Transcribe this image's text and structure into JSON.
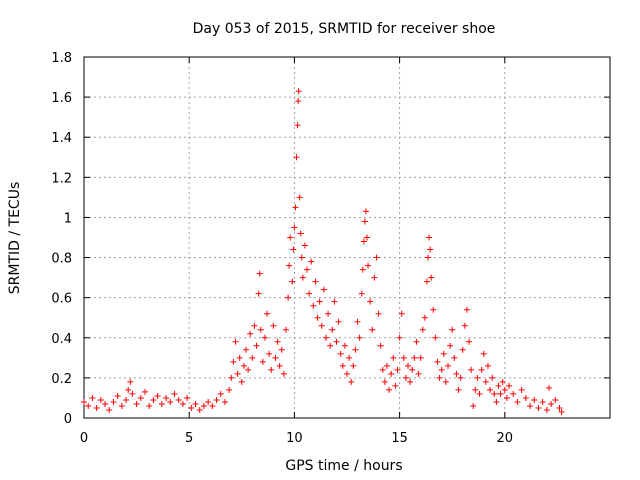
{
  "chart_data": {
    "type": "scatter",
    "title": "Day 053 of 2015, SRMTID for receiver shoe",
    "xlabel": "GPS time / hours",
    "ylabel": "SRMTID / TECUs",
    "xlim": [
      0,
      25
    ],
    "ylim": [
      0,
      1.8
    ],
    "xticks": [
      0,
      5,
      10,
      15,
      20
    ],
    "xtick_labels": [
      "0",
      "5",
      "10",
      "15",
      "20"
    ],
    "yticks": [
      0,
      0.2,
      0.4,
      0.6,
      0.8,
      1,
      1.2,
      1.4,
      1.6,
      1.8
    ],
    "ytick_labels": [
      "0",
      "0.2",
      "0.4",
      "0.6",
      "0.8",
      "1",
      "1.2",
      "1.4",
      "1.6",
      "1.8"
    ],
    "grid": true,
    "marker": "plus",
    "series_color": "#ff0000",
    "series": [
      {
        "name": "SRMTID",
        "points": [
          [
            0.0,
            0.08
          ],
          [
            0.2,
            0.06
          ],
          [
            0.4,
            0.1
          ],
          [
            0.6,
            0.05
          ],
          [
            0.8,
            0.09
          ],
          [
            1.0,
            0.07
          ],
          [
            1.2,
            0.04
          ],
          [
            1.4,
            0.08
          ],
          [
            1.6,
            0.11
          ],
          [
            1.8,
            0.06
          ],
          [
            2.0,
            0.09
          ],
          [
            2.1,
            0.14
          ],
          [
            2.2,
            0.18
          ],
          [
            2.3,
            0.12
          ],
          [
            2.5,
            0.07
          ],
          [
            2.7,
            0.1
          ],
          [
            2.9,
            0.13
          ],
          [
            3.1,
            0.06
          ],
          [
            3.3,
            0.09
          ],
          [
            3.5,
            0.11
          ],
          [
            3.7,
            0.07
          ],
          [
            3.9,
            0.1
          ],
          [
            4.1,
            0.08
          ],
          [
            4.3,
            0.12
          ],
          [
            4.5,
            0.09
          ],
          [
            4.7,
            0.07
          ],
          [
            4.9,
            0.1
          ],
          [
            5.1,
            0.05
          ],
          [
            5.3,
            0.07
          ],
          [
            5.5,
            0.04
          ],
          [
            5.7,
            0.06
          ],
          [
            5.9,
            0.08
          ],
          [
            6.1,
            0.06
          ],
          [
            6.3,
            0.09
          ],
          [
            6.5,
            0.12
          ],
          [
            6.7,
            0.08
          ],
          [
            6.9,
            0.14
          ],
          [
            7.0,
            0.2
          ],
          [
            7.1,
            0.28
          ],
          [
            7.2,
            0.38
          ],
          [
            7.3,
            0.22
          ],
          [
            7.4,
            0.3
          ],
          [
            7.5,
            0.18
          ],
          [
            7.6,
            0.26
          ],
          [
            7.7,
            0.34
          ],
          [
            7.8,
            0.24
          ],
          [
            7.9,
            0.42
          ],
          [
            8.0,
            0.3
          ],
          [
            8.1,
            0.46
          ],
          [
            8.2,
            0.36
          ],
          [
            8.3,
            0.62
          ],
          [
            8.35,
            0.72
          ],
          [
            8.4,
            0.44
          ],
          [
            8.5,
            0.28
          ],
          [
            8.6,
            0.4
          ],
          [
            8.7,
            0.52
          ],
          [
            8.8,
            0.32
          ],
          [
            8.9,
            0.24
          ],
          [
            9.0,
            0.46
          ],
          [
            9.1,
            0.3
          ],
          [
            9.2,
            0.38
          ],
          [
            9.3,
            0.26
          ],
          [
            9.4,
            0.34
          ],
          [
            9.5,
            0.22
          ],
          [
            9.6,
            0.44
          ],
          [
            9.7,
            0.6
          ],
          [
            9.75,
            0.76
          ],
          [
            9.8,
            0.9
          ],
          [
            9.9,
            0.68
          ],
          [
            9.95,
            0.84
          ],
          [
            10.0,
            0.95
          ],
          [
            10.05,
            1.05
          ],
          [
            10.1,
            1.3
          ],
          [
            10.15,
            1.46
          ],
          [
            10.18,
            1.58
          ],
          [
            10.2,
            1.63
          ],
          [
            10.25,
            1.1
          ],
          [
            10.3,
            0.92
          ],
          [
            10.35,
            0.8
          ],
          [
            10.4,
            0.7
          ],
          [
            10.5,
            0.86
          ],
          [
            10.6,
            0.74
          ],
          [
            10.7,
            0.62
          ],
          [
            10.8,
            0.78
          ],
          [
            10.9,
            0.56
          ],
          [
            11.0,
            0.68
          ],
          [
            11.1,
            0.5
          ],
          [
            11.2,
            0.58
          ],
          [
            11.3,
            0.46
          ],
          [
            11.4,
            0.64
          ],
          [
            11.5,
            0.4
          ],
          [
            11.6,
            0.52
          ],
          [
            11.7,
            0.36
          ],
          [
            11.8,
            0.44
          ],
          [
            11.9,
            0.58
          ],
          [
            12.0,
            0.38
          ],
          [
            12.1,
            0.48
          ],
          [
            12.2,
            0.32
          ],
          [
            12.3,
            0.26
          ],
          [
            12.4,
            0.36
          ],
          [
            12.5,
            0.22
          ],
          [
            12.6,
            0.3
          ],
          [
            12.7,
            0.18
          ],
          [
            12.8,
            0.26
          ],
          [
            12.9,
            0.34
          ],
          [
            13.0,
            0.48
          ],
          [
            13.1,
            0.4
          ],
          [
            13.2,
            0.62
          ],
          [
            13.25,
            0.74
          ],
          [
            13.3,
            0.88
          ],
          [
            13.35,
            0.98
          ],
          [
            13.4,
            1.03
          ],
          [
            13.45,
            0.9
          ],
          [
            13.5,
            0.76
          ],
          [
            13.6,
            0.58
          ],
          [
            13.7,
            0.44
          ],
          [
            13.8,
            0.7
          ],
          [
            13.9,
            0.8
          ],
          [
            14.0,
            0.52
          ],
          [
            14.1,
            0.36
          ],
          [
            14.2,
            0.24
          ],
          [
            14.3,
            0.18
          ],
          [
            14.4,
            0.26
          ],
          [
            14.5,
            0.14
          ],
          [
            14.6,
            0.22
          ],
          [
            14.7,
            0.3
          ],
          [
            14.8,
            0.16
          ],
          [
            14.9,
            0.24
          ],
          [
            15.0,
            0.4
          ],
          [
            15.1,
            0.52
          ],
          [
            15.2,
            0.3
          ],
          [
            15.3,
            0.2
          ],
          [
            15.4,
            0.26
          ],
          [
            15.5,
            0.18
          ],
          [
            15.6,
            0.24
          ],
          [
            15.7,
            0.3
          ],
          [
            15.8,
            0.38
          ],
          [
            15.9,
            0.22
          ],
          [
            16.0,
            0.3
          ],
          [
            16.1,
            0.44
          ],
          [
            16.2,
            0.5
          ],
          [
            16.3,
            0.68
          ],
          [
            16.35,
            0.8
          ],
          [
            16.4,
            0.9
          ],
          [
            16.45,
            0.84
          ],
          [
            16.5,
            0.7
          ],
          [
            16.6,
            0.54
          ],
          [
            16.7,
            0.4
          ],
          [
            16.8,
            0.28
          ],
          [
            16.9,
            0.2
          ],
          [
            17.0,
            0.24
          ],
          [
            17.1,
            0.32
          ],
          [
            17.2,
            0.18
          ],
          [
            17.3,
            0.26
          ],
          [
            17.4,
            0.36
          ],
          [
            17.5,
            0.44
          ],
          [
            17.6,
            0.3
          ],
          [
            17.7,
            0.22
          ],
          [
            17.8,
            0.14
          ],
          [
            17.9,
            0.2
          ],
          [
            18.0,
            0.34
          ],
          [
            18.1,
            0.46
          ],
          [
            18.2,
            0.54
          ],
          [
            18.3,
            0.38
          ],
          [
            18.4,
            0.24
          ],
          [
            18.5,
            0.06
          ],
          [
            18.6,
            0.14
          ],
          [
            18.7,
            0.2
          ],
          [
            18.8,
            0.12
          ],
          [
            18.9,
            0.24
          ],
          [
            19.0,
            0.32
          ],
          [
            19.1,
            0.18
          ],
          [
            19.2,
            0.26
          ],
          [
            19.3,
            0.14
          ],
          [
            19.4,
            0.2
          ],
          [
            19.5,
            0.12
          ],
          [
            19.6,
            0.08
          ],
          [
            19.7,
            0.16
          ],
          [
            19.8,
            0.12
          ],
          [
            19.9,
            0.18
          ],
          [
            20.0,
            0.14
          ],
          [
            20.1,
            0.1
          ],
          [
            20.2,
            0.16
          ],
          [
            20.4,
            0.12
          ],
          [
            20.6,
            0.08
          ],
          [
            20.8,
            0.14
          ],
          [
            21.0,
            0.1
          ],
          [
            21.2,
            0.06
          ],
          [
            21.4,
            0.09
          ],
          [
            21.6,
            0.05
          ],
          [
            21.8,
            0.08
          ],
          [
            22.0,
            0.04
          ],
          [
            22.1,
            0.15
          ],
          [
            22.2,
            0.07
          ],
          [
            22.4,
            0.09
          ],
          [
            22.6,
            0.05
          ],
          [
            22.7,
            0.03
          ]
        ]
      }
    ]
  }
}
